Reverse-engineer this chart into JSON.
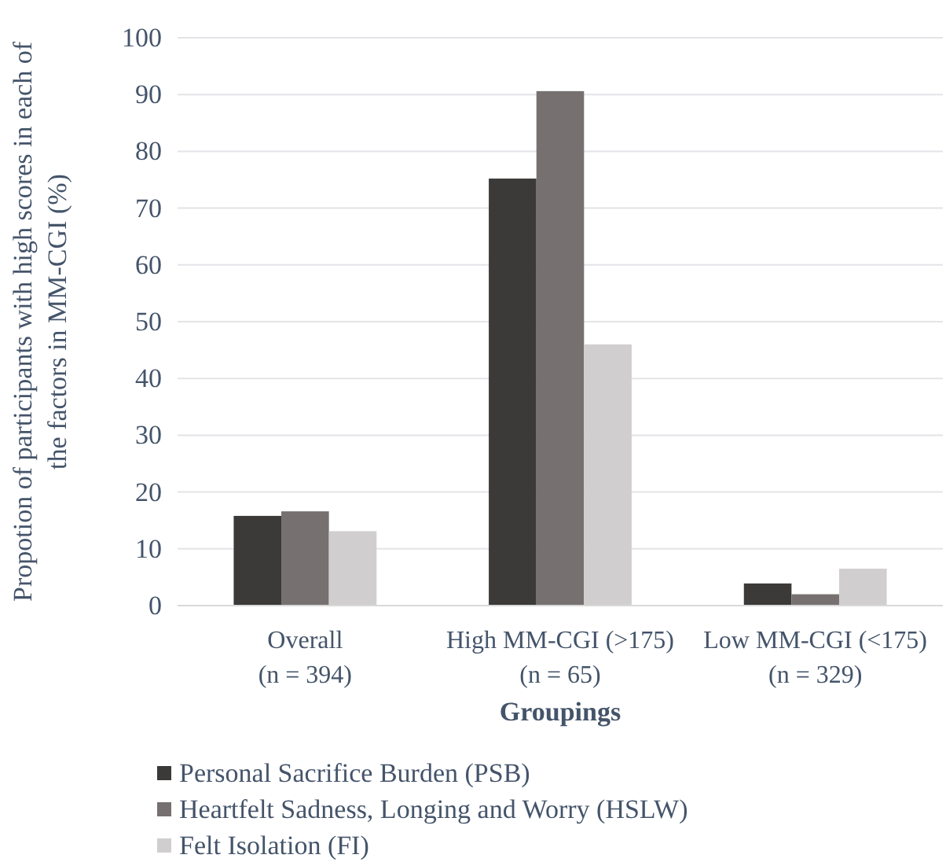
{
  "chart_data": {
    "type": "bar",
    "xlabel": "Groupings",
    "ylabel": "Propotion of participants with high scores in each of\nthe factors  in MM-CGI (%)",
    "categories": [
      "Overall\n(n = 394)",
      "High MM-CGI (>175)\n(n = 65)",
      "Low MM-CGI (<175)\n(n = 329)"
    ],
    "series": [
      {
        "name": "Personal Sacrifice Burden (PSB)",
        "color": "#3b3a38",
        "values": [
          15.8,
          75.2,
          3.9
        ]
      },
      {
        "name": "Heartfelt Sadness, Longing and Worry (HSLW)",
        "color": "#767170",
        "values": [
          16.6,
          90.6,
          2.0
        ]
      },
      {
        "name": "Felt Isolation (FI)",
        "color": "#d0cece",
        "values": [
          13.1,
          46.0,
          6.5
        ]
      }
    ],
    "ylim": [
      0,
      100
    ],
    "yticks": [
      0,
      10,
      20,
      30,
      40,
      50,
      60,
      70,
      80,
      90,
      100
    ],
    "grid": "y",
    "legend": "bottom"
  }
}
